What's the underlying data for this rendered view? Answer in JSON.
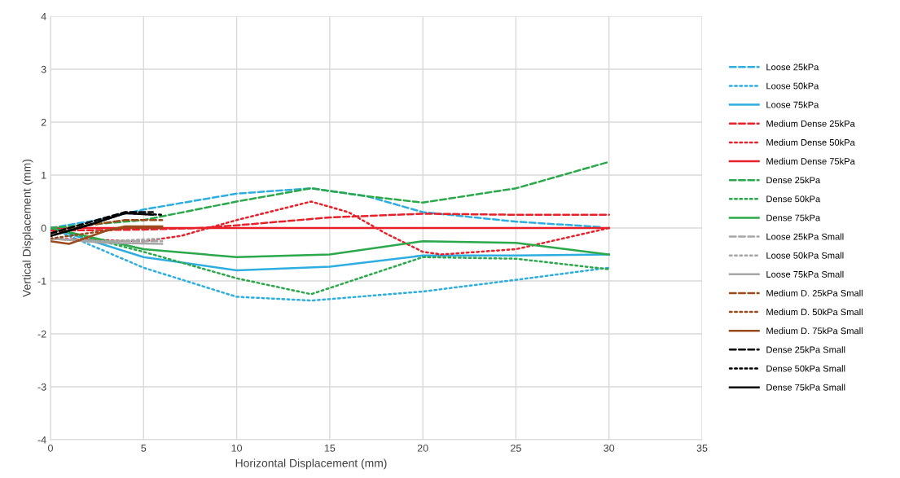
{
  "chart_data": {
    "type": "line",
    "xlabel": "Horizontal Displacement (mm)",
    "ylabel": "Vertical Displacement (mm)",
    "xlim": [
      0,
      35
    ],
    "ylim": [
      -4,
      4
    ],
    "xticks": [
      0,
      5,
      10,
      15,
      20,
      25,
      30,
      35
    ],
    "yticks": [
      -4,
      -3,
      -2,
      -1,
      0,
      1,
      2,
      3,
      4
    ],
    "grid": true,
    "legend": "right",
    "marker": "none",
    "series": [
      {
        "name": "Loose 25kPa",
        "color": "#2eaee0",
        "line_style": "dashed",
        "x": [
          0,
          2.5,
          5,
          10,
          14,
          17,
          20,
          25,
          29.5
        ],
        "values": [
          0,
          0.15,
          0.35,
          0.65,
          0.75,
          0.6,
          0.3,
          0.12,
          0.02
        ]
      },
      {
        "name": "Loose 50kPa",
        "color": "#2eaee0",
        "line_style": "dotted",
        "x": [
          0,
          5,
          10,
          14,
          20,
          25,
          30
        ],
        "values": [
          0,
          -0.75,
          -1.3,
          -1.37,
          -1.2,
          -0.98,
          -0.75
        ]
      },
      {
        "name": "Loose 75kPa",
        "color": "#2eaee0",
        "line_style": "solid",
        "x": [
          0,
          5,
          10,
          15,
          20,
          25,
          30
        ],
        "values": [
          0,
          -0.55,
          -0.8,
          -0.73,
          -0.52,
          -0.52,
          -0.5
        ]
      },
      {
        "name": "Medium Dense 25kPa",
        "color": "#e8202a",
        "line_style": "dashed",
        "x": [
          0,
          5,
          8,
          10,
          15,
          20,
          25,
          30
        ],
        "values": [
          -0.05,
          -0.03,
          0,
          0.05,
          0.2,
          0.27,
          0.25,
          0.25
        ]
      },
      {
        "name": "Medium Dense 50kPa",
        "color": "#e8202a",
        "line_style": "dotted",
        "x": [
          0,
          5,
          7,
          10,
          14,
          16,
          18,
          20,
          21,
          25,
          30
        ],
        "values": [
          -0.2,
          -0.25,
          -0.15,
          0.15,
          0.5,
          0.3,
          -0.1,
          -0.45,
          -0.5,
          -0.4,
          0
        ]
      },
      {
        "name": "Medium Dense 75kPa",
        "color": "#e8202a",
        "line_style": "solid",
        "x": [
          0,
          10,
          20,
          30
        ],
        "values": [
          0,
          0,
          0,
          0
        ]
      },
      {
        "name": "Dense 25kPa",
        "color": "#2aa84a",
        "line_style": "dashed",
        "x": [
          0,
          5,
          10,
          14,
          17,
          20,
          25,
          30
        ],
        "values": [
          0,
          0.15,
          0.5,
          0.75,
          0.6,
          0.48,
          0.75,
          1.25
        ]
      },
      {
        "name": "Dense 50kPa",
        "color": "#2aa84a",
        "line_style": "dotted",
        "x": [
          0,
          5,
          10,
          14,
          17,
          20,
          25,
          30
        ],
        "values": [
          0,
          -0.45,
          -0.95,
          -1.25,
          -0.9,
          -0.55,
          -0.58,
          -0.78
        ]
      },
      {
        "name": "Dense 75kPa",
        "color": "#2aa84a",
        "line_style": "solid",
        "x": [
          0,
          5,
          10,
          15,
          20,
          25,
          30
        ],
        "values": [
          0,
          -0.4,
          -0.55,
          -0.5,
          -0.25,
          -0.28,
          -0.5
        ]
      },
      {
        "name": "Loose 25kPa Small",
        "color": "#a6a6a6",
        "line_style": "dashed",
        "x": [
          0,
          2,
          6
        ],
        "values": [
          -0.2,
          -0.25,
          -0.25
        ]
      },
      {
        "name": "Loose 50kPa Small",
        "color": "#a6a6a6",
        "line_style": "dotted",
        "x": [
          0,
          3,
          6
        ],
        "values": [
          -0.2,
          -0.25,
          -0.2
        ]
      },
      {
        "name": "Loose 75kPa Small",
        "color": "#a6a6a6",
        "line_style": "solid",
        "x": [
          0,
          3,
          6
        ],
        "values": [
          -0.2,
          -0.28,
          -0.3
        ]
      },
      {
        "name": "Medium D. 25kPa Small",
        "color": "#9b4a1c",
        "line_style": "dashed",
        "x": [
          0,
          2,
          4,
          6
        ],
        "values": [
          -0.1,
          0.05,
          0.15,
          0.15
        ]
      },
      {
        "name": "Medium D. 50kPa Small",
        "color": "#9b4a1c",
        "line_style": "dotted",
        "x": [
          0,
          2,
          4,
          6
        ],
        "values": [
          -0.2,
          -0.1,
          0,
          0
        ]
      },
      {
        "name": "Medium D. 75kPa Small",
        "color": "#9b4a1c",
        "line_style": "solid",
        "x": [
          0,
          1,
          3,
          4,
          6
        ],
        "values": [
          -0.25,
          -0.3,
          -0.05,
          0.03,
          0.03
        ]
      },
      {
        "name": "Dense 25kPa Small",
        "color": "#000000",
        "line_style": "dashed",
        "x": [
          0,
          2,
          4,
          5.5
        ],
        "values": [
          -0.1,
          0.1,
          0.3,
          0.3
        ]
      },
      {
        "name": "Dense 50kPa Small",
        "color": "#000000",
        "line_style": "dotted",
        "x": [
          0,
          2,
          4,
          6
        ],
        "values": [
          -0.15,
          0.05,
          0.28,
          0.25
        ]
      },
      {
        "name": "Dense 75kPa Small",
        "color": "#000000",
        "line_style": "solid",
        "x": [
          0,
          2,
          4,
          5.5
        ],
        "values": [
          -0.15,
          0.05,
          0.28,
          0.25
        ]
      }
    ]
  }
}
